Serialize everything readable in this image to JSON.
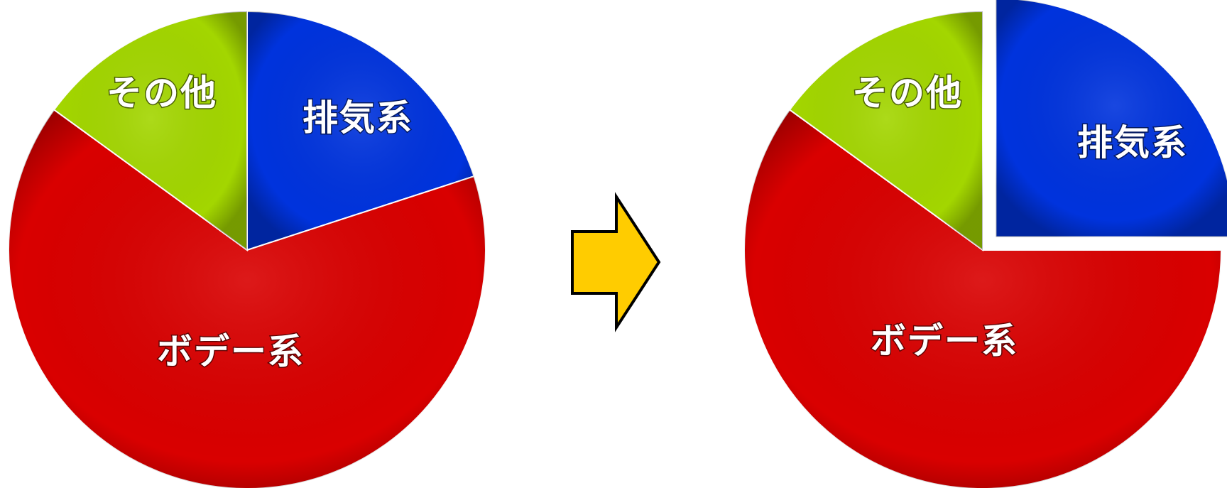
{
  "chart_data": [
    {
      "type": "pie",
      "title": "",
      "exploded": [],
      "slices": [
        {
          "label": "排気系",
          "value": 20,
          "color": "#0033dd"
        },
        {
          "label": "ボデー系",
          "value": 65,
          "color": "#d90000"
        },
        {
          "label": "その他",
          "value": 15,
          "color": "#a3d600"
        }
      ]
    },
    {
      "type": "pie",
      "title": "",
      "exploded": [
        "排気系"
      ],
      "slices": [
        {
          "label": "排気系",
          "value": 25,
          "color": "#0033dd"
        },
        {
          "label": "ボデー系",
          "value": 60,
          "color": "#d90000"
        },
        {
          "label": "その他",
          "value": 15,
          "color": "#a3d600"
        }
      ]
    }
  ],
  "arrow": {
    "color": "#ffcc00",
    "icon": "right-arrow-icon"
  }
}
